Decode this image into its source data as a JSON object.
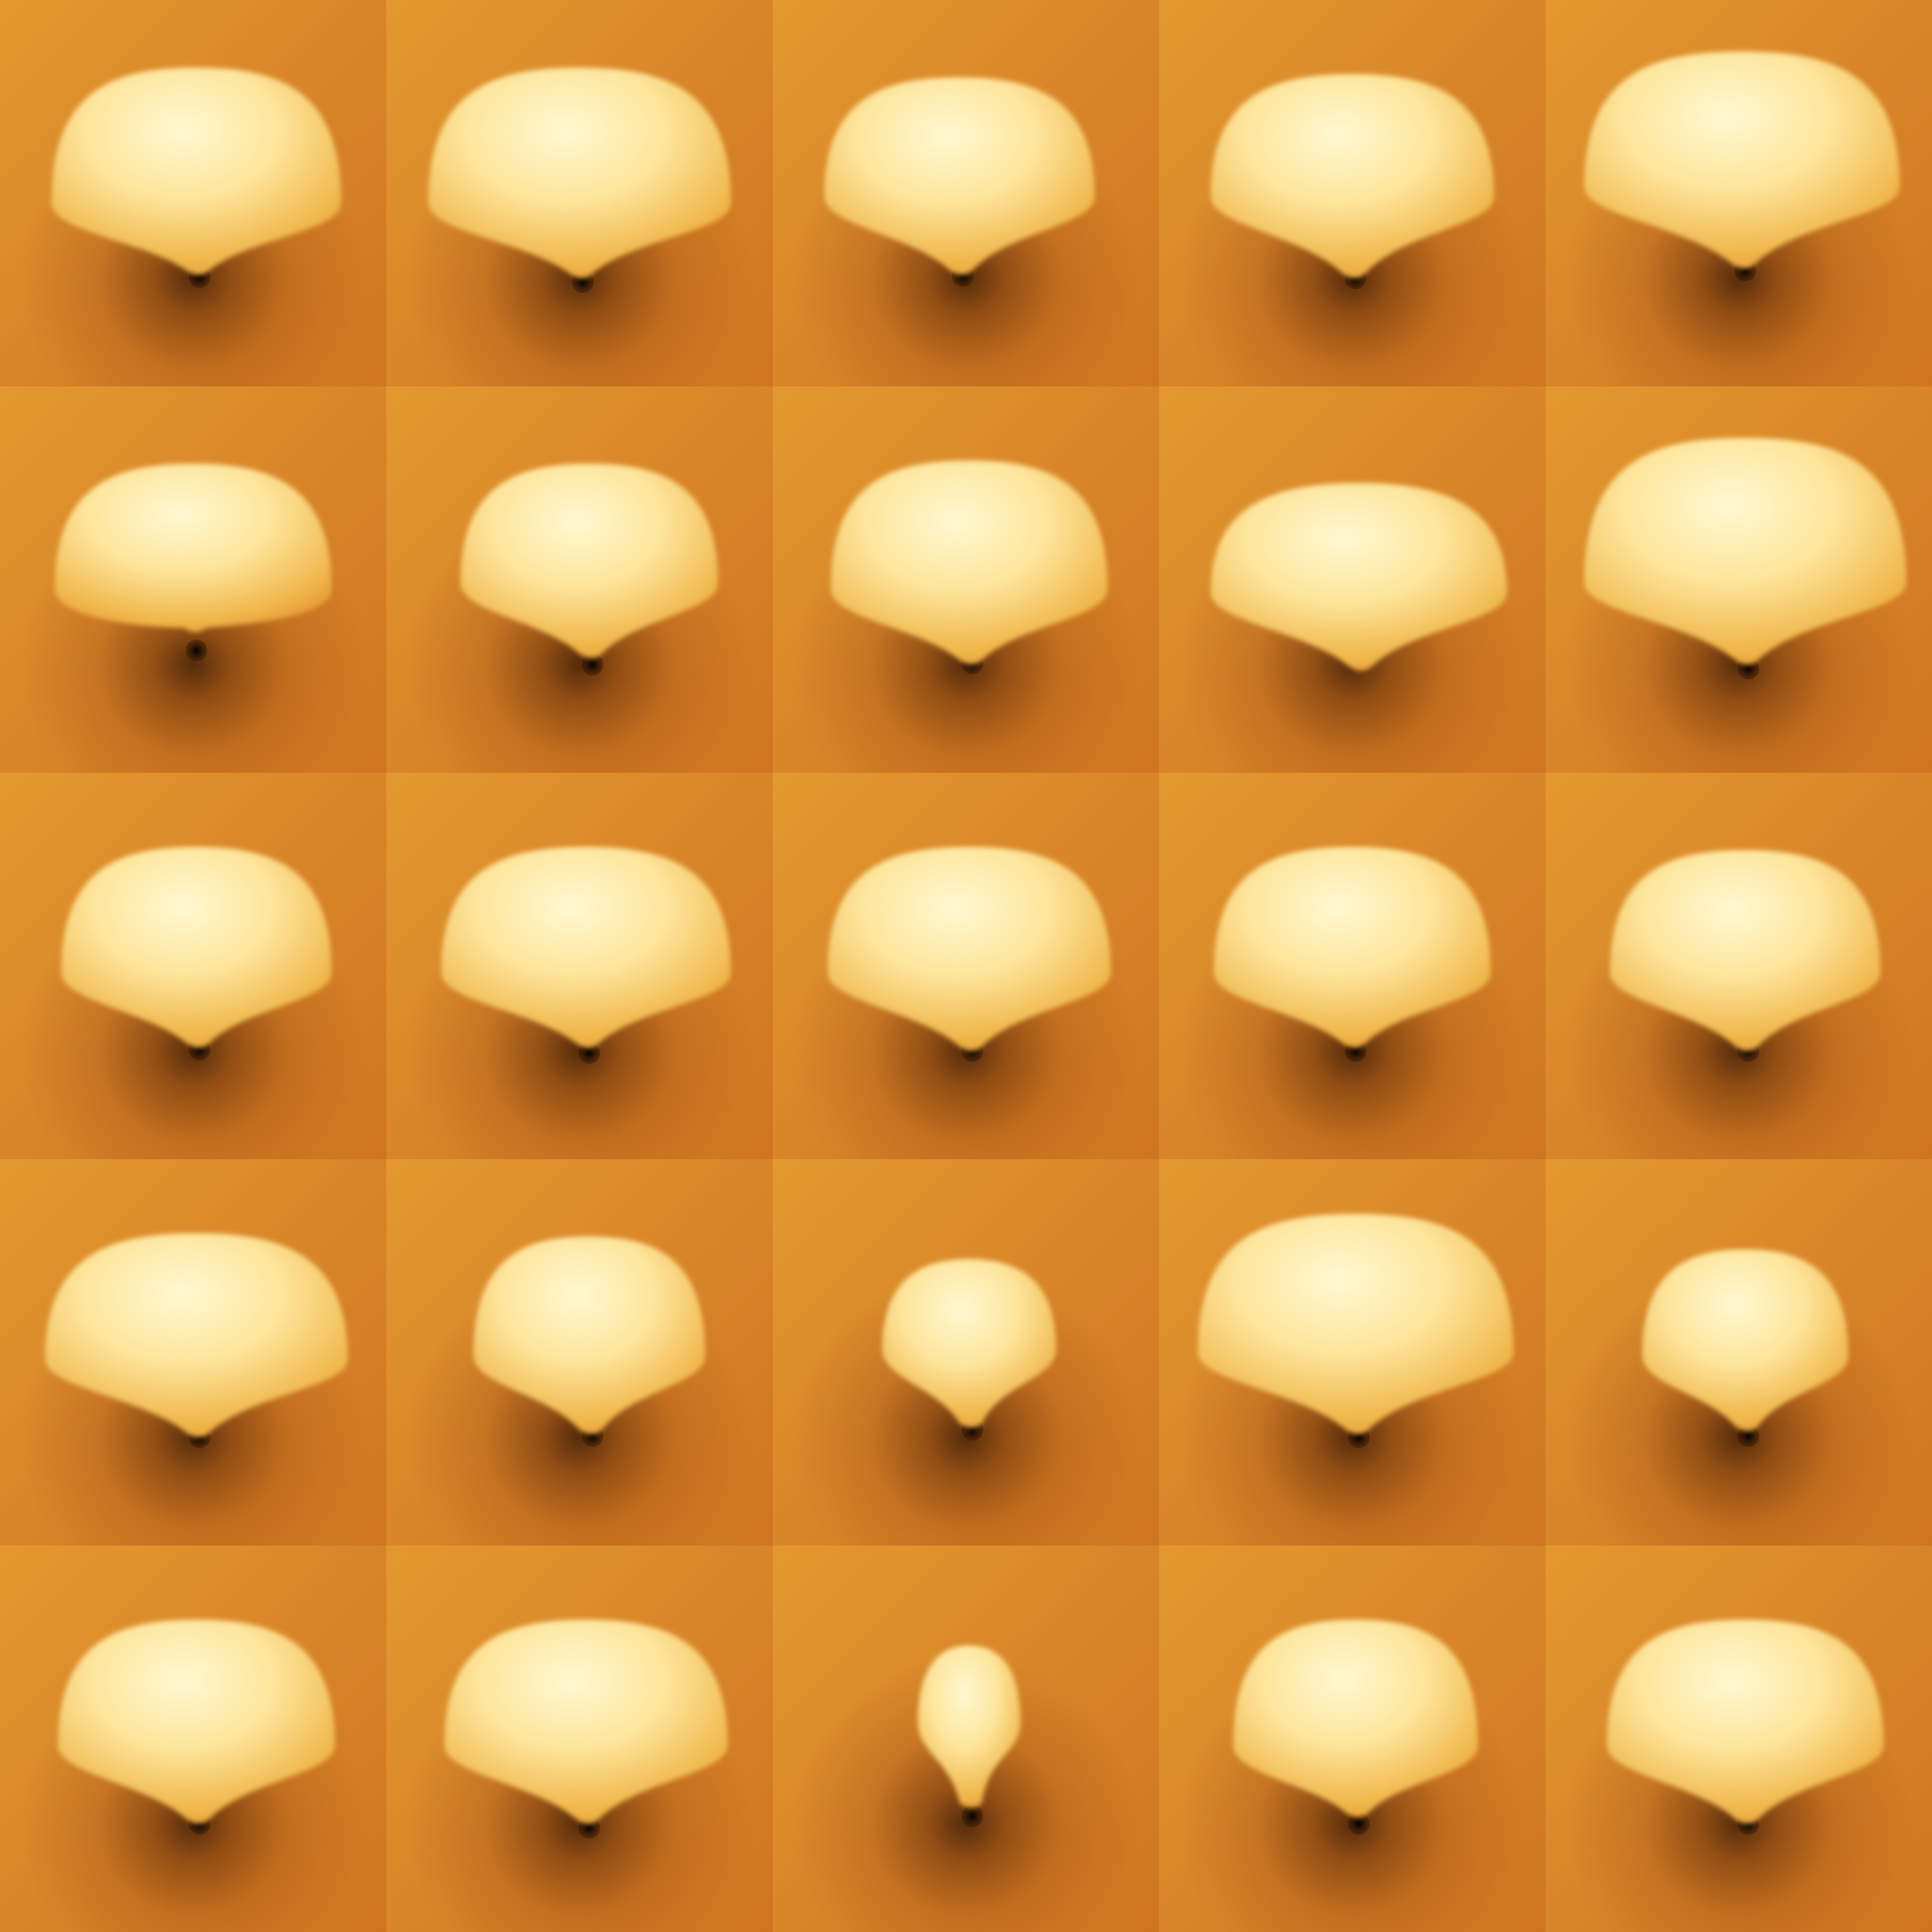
{
  "grid": {
    "rows": 5,
    "columns": 5
  },
  "colors": {
    "background_light": "#e3992f",
    "background_mid": "#d9872a",
    "background_dark": "#cf7520",
    "shadow": "#3a1200",
    "blob_highlight": "#fff8d2",
    "blob_mid": "#fde49a",
    "blob_edge": "#f0b64a"
  },
  "blobs": [
    {
      "row": 1,
      "col": 1,
      "shape": "dome-pointed"
    },
    {
      "row": 1,
      "col": 2,
      "shape": "dome-pointed"
    },
    {
      "row": 1,
      "col": 3,
      "shape": "dome-pointed"
    },
    {
      "row": 1,
      "col": 4,
      "shape": "dome-pointed"
    },
    {
      "row": 1,
      "col": 5,
      "shape": "dome-flat"
    },
    {
      "row": 2,
      "col": 1,
      "shape": "dome-flat"
    },
    {
      "row": 2,
      "col": 2,
      "shape": "dome-pointed"
    },
    {
      "row": 2,
      "col": 3,
      "shape": "dome-pointed"
    },
    {
      "row": 2,
      "col": 4,
      "shape": "dome-skewed"
    },
    {
      "row": 2,
      "col": 5,
      "shape": "dome-pointed"
    },
    {
      "row": 3,
      "col": 1,
      "shape": "dome-pointed"
    },
    {
      "row": 3,
      "col": 2,
      "shape": "dome-pointed"
    },
    {
      "row": 3,
      "col": 3,
      "shape": "dome-pointed"
    },
    {
      "row": 3,
      "col": 4,
      "shape": "dome-pointed"
    },
    {
      "row": 3,
      "col": 5,
      "shape": "dome-pointed"
    },
    {
      "row": 4,
      "col": 1,
      "shape": "dome-pointed"
    },
    {
      "row": 4,
      "col": 2,
      "shape": "dome-pointed"
    },
    {
      "row": 4,
      "col": 3,
      "shape": "dome-small"
    },
    {
      "row": 4,
      "col": 4,
      "shape": "dome-pointed"
    },
    {
      "row": 4,
      "col": 5,
      "shape": "dome-pointed"
    },
    {
      "row": 5,
      "col": 1,
      "shape": "dome-pointed"
    },
    {
      "row": 5,
      "col": 2,
      "shape": "dome-pointed"
    },
    {
      "row": 5,
      "col": 3,
      "shape": "dome-tiny"
    },
    {
      "row": 5,
      "col": 4,
      "shape": "dome-pointed"
    },
    {
      "row": 5,
      "col": 5,
      "shape": "dome-pointed"
    }
  ]
}
